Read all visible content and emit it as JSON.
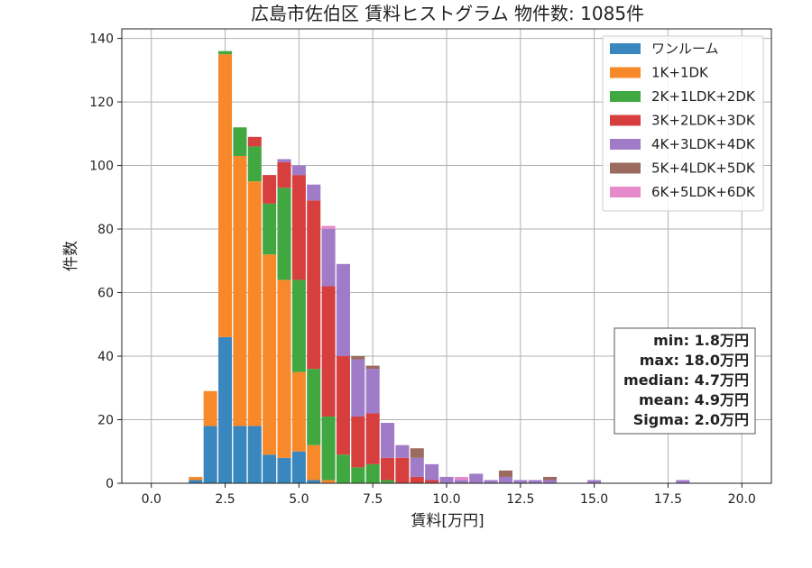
{
  "chart_data": {
    "type": "bar",
    "stacked": true,
    "title": "広島市佐伯区 賃料ヒストグラム 物件数: 1085件",
    "xlabel": "賃料[万円]",
    "ylabel": "件数",
    "xlim": [
      -1.0,
      21.0
    ],
    "ylim": [
      0,
      143
    ],
    "x_ticks": [
      0.0,
      2.5,
      5.0,
      7.5,
      10.0,
      12.5,
      15.0,
      17.5,
      20.0
    ],
    "x_tick_labels": [
      "0.0",
      "2.5",
      "5.0",
      "7.5",
      "10.0",
      "12.5",
      "15.0",
      "17.5",
      "20.0"
    ],
    "y_ticks": [
      0,
      20,
      40,
      60,
      80,
      100,
      120,
      140
    ],
    "y_tick_labels": [
      "0",
      "20",
      "40",
      "60",
      "80",
      "100",
      "120",
      "140"
    ],
    "grid": true,
    "legend_position": "top-right",
    "bin_width": 0.5,
    "x": [
      1.5,
      2.0,
      2.5,
      3.0,
      3.5,
      4.0,
      4.5,
      5.0,
      5.5,
      6.0,
      6.5,
      7.0,
      7.5,
      8.0,
      8.5,
      9.0,
      9.5,
      10.0,
      10.5,
      11.0,
      11.5,
      12.0,
      12.5,
      13.0,
      13.5,
      15.0,
      18.0
    ],
    "series": [
      {
        "name": "ワンルーム",
        "color": "#3a86bf",
        "values": [
          1,
          18,
          46,
          18,
          18,
          9,
          8,
          10,
          1,
          0,
          0,
          0,
          0,
          0,
          0,
          0,
          0,
          0,
          0,
          0,
          0,
          0,
          0,
          0,
          0,
          0,
          0
        ]
      },
      {
        "name": "1K+1DK",
        "color": "#f7892a",
        "values": [
          1,
          11,
          89,
          85,
          77,
          63,
          56,
          25,
          11,
          1,
          0,
          0,
          0,
          0,
          0,
          0,
          0,
          0,
          0,
          0,
          0,
          0,
          0,
          0,
          0,
          0,
          0
        ]
      },
      {
        "name": "2K+1LDK+2DK",
        "color": "#41a841",
        "values": [
          0,
          0,
          1,
          9,
          11,
          16,
          29,
          29,
          24,
          20,
          9,
          5,
          6,
          1,
          0,
          0,
          0,
          0,
          0,
          0,
          0,
          0,
          0,
          0,
          0,
          0,
          0
        ]
      },
      {
        "name": "3K+2LDK+3DK",
        "color": "#d73f3f",
        "values": [
          0,
          0,
          0,
          0,
          3,
          9,
          8,
          33,
          53,
          41,
          31,
          16,
          16,
          7,
          8,
          2,
          1,
          0,
          0,
          0,
          0,
          0,
          0,
          0,
          0,
          0,
          0
        ]
      },
      {
        "name": "4K+3LDK+4DK",
        "color": "#a07cc8",
        "values": [
          0,
          0,
          0,
          0,
          0,
          0,
          1,
          3,
          5,
          18,
          29,
          18,
          14,
          11,
          4,
          6,
          5,
          2,
          1,
          3,
          1,
          2,
          1,
          1,
          1,
          1,
          1
        ]
      },
      {
        "name": "5K+4LDK+5DK",
        "color": "#9a6b5e",
        "values": [
          0,
          0,
          0,
          0,
          0,
          0,
          0,
          0,
          0,
          0,
          0,
          1,
          1,
          0,
          0,
          3,
          0,
          0,
          0,
          0,
          0,
          2,
          0,
          0,
          1,
          0,
          0
        ]
      },
      {
        "name": "6K+5LDK+6DK",
        "color": "#e68acb",
        "values": [
          0,
          0,
          0,
          0,
          0,
          0,
          0,
          0,
          0,
          1,
          0,
          0,
          0,
          0,
          0,
          0,
          0,
          0,
          1,
          0,
          0,
          0,
          0,
          0,
          0,
          0,
          0
        ]
      }
    ],
    "stats": {
      "min": "min: 1.8万円",
      "max": "max: 18.0万円",
      "median": "median: 4.7万円",
      "mean": "mean: 4.9万円",
      "sigma": "Sigma: 2.0万円"
    }
  }
}
